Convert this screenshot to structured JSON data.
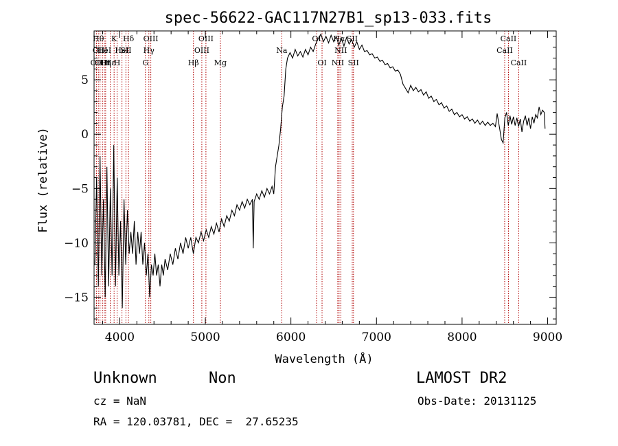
{
  "chart_data": {
    "type": "line",
    "title": "spec-56622-GAC117N27B1_sp13-033.fits",
    "xlabel": "Wavelength (Å)",
    "ylabel": "Flux (relative)",
    "xlim": [
      3700,
      9100
    ],
    "ylim": [
      -17.5,
      9.5
    ],
    "xticks": [
      4000,
      5000,
      6000,
      7000,
      8000,
      9000
    ],
    "yticks": [
      -15,
      -10,
      -5,
      0,
      5
    ],
    "grid": false,
    "reference_lines": [
      {
        "x": 3728,
        "label": "OII",
        "row": 2
      },
      {
        "x": 3750,
        "label": "Hθ",
        "row": 0
      },
      {
        "x": 3770,
        "label": "OIII",
        "row": 1
      },
      {
        "x": 3798,
        "label": "OIII",
        "row": 2
      },
      {
        "x": 3820,
        "label": "HeI",
        "row": 1
      },
      {
        "x": 3835,
        "label": "Hη",
        "row": 2
      },
      {
        "x": 3889,
        "label": "Hε",
        "row": 2
      },
      {
        "x": 3934,
        "label": "K",
        "row": 0
      },
      {
        "x": 3969,
        "label": "H",
        "row": 2
      },
      {
        "x": 4026,
        "label": "HeI",
        "row": 1
      },
      {
        "x": 4072,
        "label": "SII",
        "row": 1
      },
      {
        "x": 4102,
        "label": "Hδ",
        "row": 0
      },
      {
        "x": 4300,
        "label": "G",
        "row": 2
      },
      {
        "x": 4340,
        "label": "Hγ",
        "row": 1
      },
      {
        "x": 4363,
        "label": "OIII",
        "row": 0
      },
      {
        "x": 4861,
        "label": "Hβ",
        "row": 2
      },
      {
        "x": 4959,
        "label": "OIII",
        "row": 1
      },
      {
        "x": 5007,
        "label": "OIII",
        "row": 0
      },
      {
        "x": 5176,
        "label": "Mg",
        "row": 2
      },
      {
        "x": 5893,
        "label": "Na",
        "row": 1
      },
      {
        "x": 6300,
        "label": "OI",
        "row": 0
      },
      {
        "x": 6364,
        "label": "OI",
        "row": 2
      },
      {
        "x": 6548,
        "label": "NII",
        "row": 2
      },
      {
        "x": 6563,
        "label": "Hα",
        "row": 0
      },
      {
        "x": 6583,
        "label": "NII",
        "row": 1
      },
      {
        "x": 6717,
        "label": "SII",
        "row": 0
      },
      {
        "x": 6731,
        "label": "SII",
        "row": 2
      },
      {
        "x": 8498,
        "label": "CaII",
        "row": 1
      },
      {
        "x": 8542,
        "label": "CaII",
        "row": 0
      },
      {
        "x": 8662,
        "label": "CaII",
        "row": 2
      }
    ],
    "series": [
      {
        "points": [
          [
            3710,
            -12
          ],
          [
            3730,
            -4
          ],
          [
            3750,
            -14
          ],
          [
            3770,
            -2
          ],
          [
            3790,
            -13
          ],
          [
            3810,
            -6
          ],
          [
            3830,
            -15
          ],
          [
            3850,
            -3
          ],
          [
            3870,
            -14
          ],
          [
            3890,
            -5
          ],
          [
            3910,
            -13
          ],
          [
            3930,
            -1
          ],
          [
            3950,
            -14
          ],
          [
            3970,
            -4
          ],
          [
            3990,
            -13
          ],
          [
            4010,
            -8
          ],
          [
            4030,
            -16
          ],
          [
            4050,
            -6
          ],
          [
            4070,
            -12
          ],
          [
            4090,
            -7
          ],
          [
            4110,
            -11
          ],
          [
            4130,
            -9
          ],
          [
            4150,
            -11
          ],
          [
            4170,
            -8
          ],
          [
            4190,
            -12
          ],
          [
            4210,
            -9
          ],
          [
            4230,
            -11
          ],
          [
            4250,
            -9
          ],
          [
            4270,
            -12
          ],
          [
            4290,
            -10
          ],
          [
            4310,
            -13
          ],
          [
            4330,
            -11
          ],
          [
            4350,
            -15
          ],
          [
            4370,
            -12
          ],
          [
            4390,
            -13
          ],
          [
            4410,
            -11
          ],
          [
            4430,
            -13
          ],
          [
            4450,
            -12
          ],
          [
            4470,
            -14
          ],
          [
            4490,
            -12
          ],
          [
            4510,
            -13
          ],
          [
            4530,
            -11.5
          ],
          [
            4560,
            -12.5
          ],
          [
            4590,
            -11
          ],
          [
            4620,
            -12
          ],
          [
            4650,
            -10.5
          ],
          [
            4680,
            -11.5
          ],
          [
            4710,
            -10
          ],
          [
            4740,
            -11
          ],
          [
            4770,
            -9.5
          ],
          [
            4800,
            -10.5
          ],
          [
            4830,
            -9.5
          ],
          [
            4860,
            -11
          ],
          [
            4890,
            -9.5
          ],
          [
            4920,
            -10
          ],
          [
            4950,
            -9
          ],
          [
            4980,
            -9.8
          ],
          [
            5010,
            -8.8
          ],
          [
            5040,
            -9.5
          ],
          [
            5070,
            -8.5
          ],
          [
            5100,
            -9.2
          ],
          [
            5130,
            -8.2
          ],
          [
            5160,
            -9
          ],
          [
            5190,
            -7.8
          ],
          [
            5220,
            -8.5
          ],
          [
            5250,
            -7.5
          ],
          [
            5280,
            -8
          ],
          [
            5310,
            -7
          ],
          [
            5340,
            -7.5
          ],
          [
            5370,
            -6.5
          ],
          [
            5400,
            -7
          ],
          [
            5430,
            -6.2
          ],
          [
            5460,
            -6.8
          ],
          [
            5490,
            -6
          ],
          [
            5520,
            -6.5
          ],
          [
            5550,
            -6
          ],
          [
            5560,
            -10.5
          ],
          [
            5570,
            -6.2
          ],
          [
            5600,
            -5.5
          ],
          [
            5630,
            -6
          ],
          [
            5660,
            -5.2
          ],
          [
            5690,
            -5.8
          ],
          [
            5720,
            -5
          ],
          [
            5750,
            -5.5
          ],
          [
            5780,
            -4.8
          ],
          [
            5800,
            -5.5
          ],
          [
            5820,
            -3
          ],
          [
            5840,
            -2
          ],
          [
            5860,
            -1
          ],
          [
            5880,
            0.5
          ],
          [
            5900,
            2.5
          ],
          [
            5920,
            3.5
          ],
          [
            5940,
            6
          ],
          [
            5960,
            7
          ],
          [
            5990,
            7.5
          ],
          [
            6020,
            7
          ],
          [
            6050,
            7.8
          ],
          [
            6080,
            7.2
          ],
          [
            6110,
            7.6
          ],
          [
            6140,
            7.1
          ],
          [
            6170,
            7.8
          ],
          [
            6200,
            7.3
          ],
          [
            6230,
            8
          ],
          [
            6260,
            7.6
          ],
          [
            6290,
            8.3
          ],
          [
            6320,
            8.8
          ],
          [
            6350,
            9.2
          ],
          [
            6380,
            8.5
          ],
          [
            6410,
            9
          ],
          [
            6440,
            8.4
          ],
          [
            6470,
            9.1
          ],
          [
            6500,
            8.5
          ],
          [
            6530,
            9
          ],
          [
            6560,
            8.2
          ],
          [
            6590,
            8.8
          ],
          [
            6620,
            8.1
          ],
          [
            6650,
            8.9
          ],
          [
            6680,
            8.3
          ],
          [
            6710,
            8.7
          ],
          [
            6740,
            8
          ],
          [
            6770,
            8.5
          ],
          [
            6800,
            7.8
          ],
          [
            6830,
            8.2
          ],
          [
            6860,
            7.6
          ],
          [
            6890,
            7.7
          ],
          [
            6920,
            7.3
          ],
          [
            6950,
            7.4
          ],
          [
            6980,
            7
          ],
          [
            7010,
            7.1
          ],
          [
            7040,
            6.7
          ],
          [
            7070,
            6.8
          ],
          [
            7100,
            6.4
          ],
          [
            7130,
            6.5
          ],
          [
            7160,
            6.1
          ],
          [
            7190,
            6.2
          ],
          [
            7220,
            5.8
          ],
          [
            7250,
            5.9
          ],
          [
            7280,
            5.5
          ],
          [
            7310,
            4.6
          ],
          [
            7340,
            4.2
          ],
          [
            7370,
            3.8
          ],
          [
            7400,
            4.5
          ],
          [
            7430,
            4
          ],
          [
            7460,
            4.3
          ],
          [
            7490,
            3.9
          ],
          [
            7520,
            4.1
          ],
          [
            7550,
            3.6
          ],
          [
            7580,
            3.9
          ],
          [
            7610,
            3.3
          ],
          [
            7640,
            3.5
          ],
          [
            7670,
            3
          ],
          [
            7700,
            3.2
          ],
          [
            7730,
            2.7
          ],
          [
            7760,
            2.9
          ],
          [
            7790,
            2.4
          ],
          [
            7820,
            2.6
          ],
          [
            7850,
            2.1
          ],
          [
            7880,
            2.3
          ],
          [
            7910,
            1.8
          ],
          [
            7940,
            2
          ],
          [
            7970,
            1.6
          ],
          [
            8000,
            1.8
          ],
          [
            8030,
            1.4
          ],
          [
            8060,
            1.6
          ],
          [
            8090,
            1.2
          ],
          [
            8120,
            1.4
          ],
          [
            8150,
            1
          ],
          [
            8180,
            1.3
          ],
          [
            8210,
            0.9
          ],
          [
            8240,
            1.2
          ],
          [
            8270,
            0.8
          ],
          [
            8300,
            1.1
          ],
          [
            8330,
            0.8
          ],
          [
            8360,
            1
          ],
          [
            8390,
            0.7
          ],
          [
            8410,
            1.9
          ],
          [
            8440,
            0.5
          ],
          [
            8460,
            -0.5
          ],
          [
            8480,
            -0.8
          ],
          [
            8500,
            1.5
          ],
          [
            8520,
            2
          ],
          [
            8540,
            0.8
          ],
          [
            8560,
            1.7
          ],
          [
            8580,
            0.9
          ],
          [
            8600,
            1.6
          ],
          [
            8620,
            0.8
          ],
          [
            8640,
            1.5
          ],
          [
            8660,
            0.7
          ],
          [
            8680,
            1.4
          ],
          [
            8700,
            0.2
          ],
          [
            8720,
            1.2
          ],
          [
            8740,
            1.7
          ],
          [
            8760,
            0.8
          ],
          [
            8780,
            1.5
          ],
          [
            8800,
            0.5
          ],
          [
            8820,
            1.6
          ],
          [
            8840,
            1
          ],
          [
            8860,
            1.8
          ],
          [
            8880,
            1.5
          ],
          [
            8900,
            2.5
          ],
          [
            8920,
            1.8
          ],
          [
            8940,
            2.2
          ],
          [
            8960,
            2
          ],
          [
            8970,
            0.5
          ]
        ]
      }
    ]
  },
  "info": {
    "object_class": "Unknown",
    "object_subclass": "Non",
    "survey": "LAMOST DR2",
    "cz": "cz = NaN",
    "obs_date": "Obs-Date: 20131125",
    "coords": "RA = 120.03781, DEC =  27.65235"
  }
}
